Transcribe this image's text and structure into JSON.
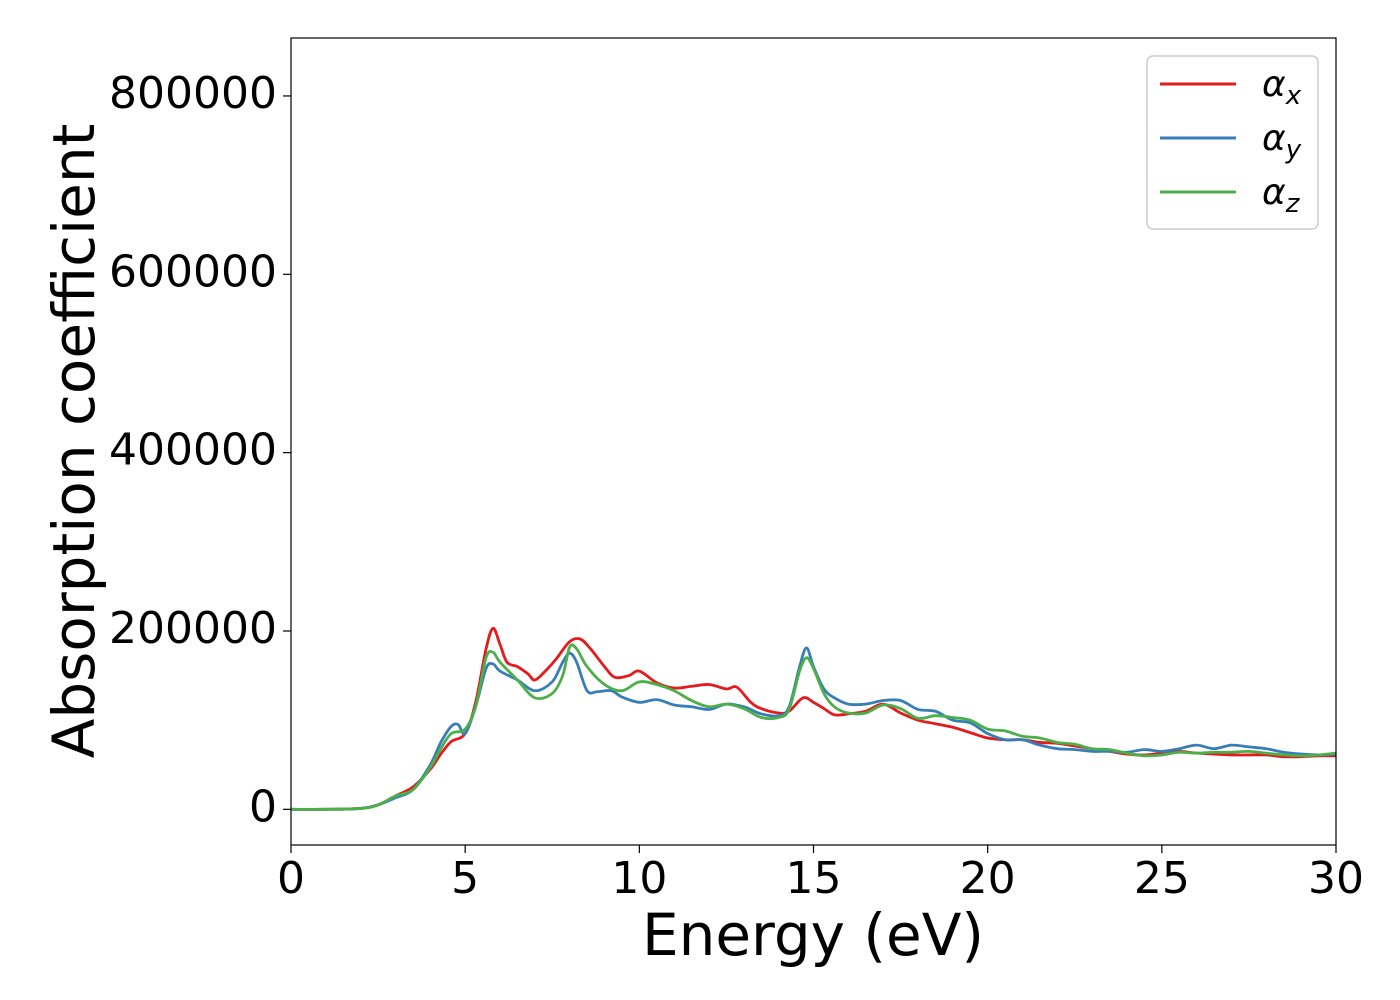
{
  "chart_data": {
    "type": "line",
    "title": "",
    "xlabel": "Energy (eV)",
    "ylabel": "Absorption coefficient",
    "xlim": [
      0,
      30
    ],
    "ylim": [
      -40000,
      865000
    ],
    "xticks": [
      0,
      5,
      10,
      15,
      20,
      25,
      30
    ],
    "yticks": [
      0,
      200000,
      400000,
      600000,
      800000
    ],
    "xtick_labels": [
      "0",
      "5",
      "10",
      "15",
      "20",
      "25",
      "30"
    ],
    "ytick_labels": [
      "0",
      "200000",
      "400000",
      "600000",
      "800000"
    ],
    "grid": false,
    "legend_position": "top-right",
    "legend": [
      {
        "symbol": "α",
        "subscript": "x",
        "color": "#e41a1c"
      },
      {
        "symbol": "α",
        "subscript": "y",
        "color": "#377eb8"
      },
      {
        "symbol": "α",
        "subscript": "z",
        "color": "#4daf4a"
      }
    ],
    "series": [
      {
        "name": "αx",
        "color": "#e41a1c",
        "x": [
          0,
          1,
          2,
          2.5,
          3,
          3.5,
          4,
          4.3,
          4.6,
          5,
          5.3,
          5.6,
          5.8,
          6,
          6.2,
          6.5,
          6.8,
          7,
          7.3,
          7.6,
          8,
          8.3,
          8.6,
          9,
          9.3,
          9.7,
          10,
          10.5,
          11,
          11.5,
          12,
          12.5,
          12.8,
          13.2,
          13.5,
          14,
          14.3,
          14.7,
          15,
          15.3,
          15.6,
          16,
          16.5,
          17,
          17.5,
          18,
          18.5,
          19,
          19.5,
          20,
          20.5,
          21,
          21.5,
          22,
          22.5,
          23,
          23.5,
          24,
          24.5,
          25,
          25.5,
          26,
          26.5,
          27,
          27.5,
          28,
          28.5,
          29,
          29.5,
          30
        ],
        "y": [
          0,
          0,
          1000,
          5000,
          15000,
          25000,
          45000,
          62000,
          76000,
          85000,
          120000,
          180000,
          203000,
          185000,
          165000,
          160000,
          152000,
          145000,
          155000,
          168000,
          188000,
          191000,
          180000,
          160000,
          148000,
          150000,
          155000,
          142000,
          136000,
          138000,
          140000,
          135000,
          137000,
          120000,
          113000,
          108000,
          110000,
          125000,
          120000,
          113000,
          106000,
          107000,
          110000,
          118000,
          108000,
          100000,
          96000,
          92000,
          86000,
          80000,
          78000,
          78000,
          75000,
          74000,
          71000,
          68000,
          65000,
          62000,
          61000,
          63000,
          65000,
          63000,
          62000,
          61000,
          61000,
          61000,
          59000,
          59000,
          60000,
          60000
        ]
      },
      {
        "name": "αy",
        "color": "#377eb8",
        "x": [
          0,
          1,
          2,
          2.5,
          3,
          3.5,
          4,
          4.3,
          4.6,
          4.8,
          5,
          5.3,
          5.6,
          5.8,
          6,
          6.5,
          7,
          7.5,
          7.8,
          8,
          8.2,
          8.5,
          8.8,
          9.2,
          9.5,
          10,
          10.5,
          11,
          11.5,
          12,
          12.5,
          13,
          13.5,
          14,
          14.3,
          14.6,
          14.8,
          15,
          15.3,
          15.6,
          16,
          16.5,
          17,
          17.5,
          18,
          18.5,
          19,
          19.5,
          20,
          20.5,
          21,
          21.5,
          22,
          22.5,
          23,
          23.5,
          24,
          24.5,
          25,
          25.5,
          26,
          26.5,
          27,
          27.5,
          28,
          28.5,
          29,
          29.5,
          30
        ],
        "y": [
          0,
          0,
          1000,
          5000,
          13000,
          22000,
          50000,
          75000,
          93000,
          95000,
          85000,
          115000,
          158000,
          163000,
          155000,
          145000,
          133000,
          143000,
          165000,
          175000,
          165000,
          133000,
          132000,
          133000,
          126000,
          120000,
          123000,
          117000,
          115000,
          112000,
          118000,
          115000,
          107000,
          105000,
          115000,
          160000,
          181000,
          160000,
          135000,
          125000,
          118000,
          118000,
          122000,
          122000,
          112000,
          110000,
          100000,
          97000,
          85000,
          78000,
          78000,
          72000,
          68000,
          67000,
          65000,
          65000,
          64000,
          67000,
          65000,
          68000,
          72000,
          68000,
          72000,
          70000,
          68000,
          64000,
          62000,
          61000,
          62000
        ]
      },
      {
        "name": "αz",
        "color": "#4daf4a",
        "x": [
          0,
          1,
          2,
          2.5,
          3,
          3.5,
          4,
          4.3,
          4.6,
          5,
          5.3,
          5.6,
          5.8,
          6,
          6.5,
          7,
          7.5,
          7.8,
          8,
          8.2,
          8.5,
          9,
          9.5,
          10,
          10.5,
          11,
          11.5,
          12,
          12.5,
          13,
          13.5,
          14,
          14.3,
          14.6,
          14.8,
          15,
          15.3,
          15.6,
          16,
          16.5,
          17,
          17.5,
          18,
          18.5,
          19,
          19.5,
          20,
          20.5,
          21,
          21.5,
          22,
          22.5,
          23,
          23.5,
          24,
          24.5,
          25,
          25.5,
          26,
          26.5,
          27,
          27.5,
          28,
          28.5,
          29,
          29.5,
          30
        ],
        "y": [
          0,
          0,
          1000,
          5000,
          15000,
          22000,
          47000,
          68000,
          85000,
          90000,
          115000,
          170000,
          176000,
          165000,
          145000,
          125000,
          130000,
          150000,
          182000,
          180000,
          160000,
          140000,
          133000,
          143000,
          140000,
          133000,
          122000,
          115000,
          118000,
          113000,
          103000,
          103000,
          112000,
          155000,
          170000,
          158000,
          130000,
          115000,
          108000,
          108000,
          117000,
          113000,
          102000,
          105000,
          103000,
          100000,
          90000,
          88000,
          82000,
          80000,
          75000,
          73000,
          68000,
          67000,
          63000,
          60000,
          61000,
          64000,
          63000,
          64000,
          64000,
          65000,
          63000,
          61000,
          60000,
          61000,
          63000
        ]
      }
    ]
  }
}
